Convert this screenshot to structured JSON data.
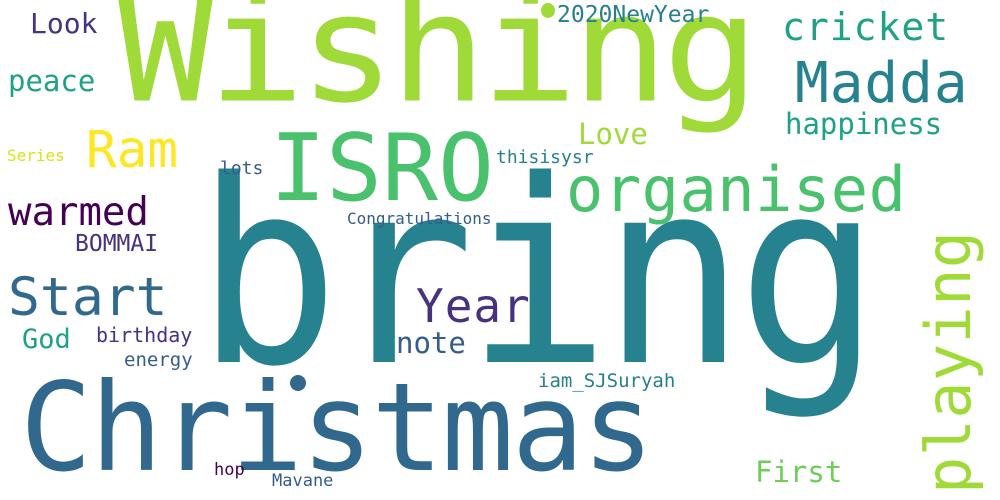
{
  "wordcloud": {
    "words": [
      {
        "text": "bring",
        "color": "#26828e"
      },
      {
        "text": "Wishing",
        "color": "#a0da39"
      },
      {
        "text": "Christmas",
        "color": "#31688e"
      },
      {
        "text": "ISRO",
        "color": "#4ac16d"
      },
      {
        "text": "organised",
        "color": "#4ac16d"
      },
      {
        "text": "playing",
        "color": "#a0da39"
      },
      {
        "text": "Madda",
        "color": "#26828e"
      },
      {
        "text": "Start",
        "color": "#31688e"
      },
      {
        "text": "Ram",
        "color": "#fde725"
      },
      {
        "text": "Year",
        "color": "#46327e"
      },
      {
        "text": "warmed",
        "color": "#440154"
      },
      {
        "text": "cricket",
        "color": "#1fa187"
      },
      {
        "text": "happiness",
        "color": "#1fa187"
      },
      {
        "text": "peace",
        "color": "#1fa187"
      },
      {
        "text": "Look",
        "color": "#46327e"
      },
      {
        "text": "2020NewYear",
        "color": "#277f8e"
      },
      {
        "text": "Love",
        "color": "#a0da39"
      },
      {
        "text": "BOMMAI",
        "color": "#46327e"
      },
      {
        "text": "note",
        "color": "#365c8d"
      },
      {
        "text": "God",
        "color": "#1fa187"
      },
      {
        "text": "First",
        "color": "#6ece58"
      },
      {
        "text": "birthday",
        "color": "#46327e"
      },
      {
        "text": "energy",
        "color": "#365c8d"
      },
      {
        "text": "iam_SJSuryah",
        "color": "#277f8e"
      },
      {
        "text": "Congratulations",
        "color": "#365c8d"
      },
      {
        "text": "thisisysr",
        "color": "#277f8e"
      },
      {
        "text": "lots",
        "color": "#365c8d"
      },
      {
        "text": "Series",
        "color": "#d8e219"
      },
      {
        "text": "hop",
        "color": "#440154"
      },
      {
        "text": "Mavane",
        "color": "#365c8d"
      },
      {
        "text": "dot-a",
        "color": "#a0da39"
      },
      {
        "text": "dot-b",
        "color": "#31688e"
      }
    ]
  }
}
